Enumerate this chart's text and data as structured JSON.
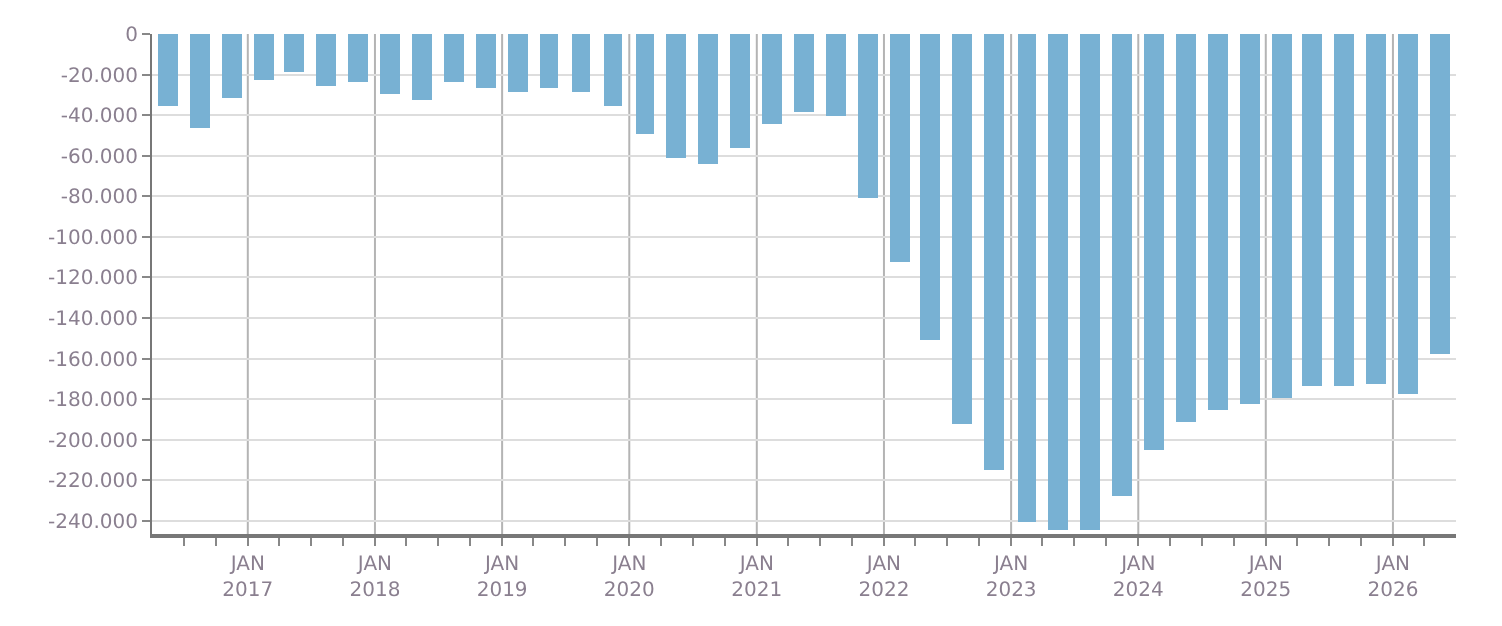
{
  "chart_data": {
    "type": "bar",
    "x": [
      "2016-05-15",
      "2016-08-15",
      "2016-11-15",
      "2017-02-15",
      "2017-05-15",
      "2017-08-15",
      "2017-11-15",
      "2018-02-15",
      "2018-05-15",
      "2018-08-15",
      "2018-11-15",
      "2019-02-15",
      "2019-05-15",
      "2019-08-15",
      "2019-11-15",
      "2020-02-15",
      "2020-05-15",
      "2020-08-15",
      "2020-11-15",
      "2021-02-15",
      "2021-05-15",
      "2021-08-15",
      "2021-11-15",
      "2022-02-15",
      "2022-05-15",
      "2022-08-15",
      "2022-11-15",
      "2023-02-15",
      "2023-05-15",
      "2023-08-15",
      "2023-11-15",
      "2024-02-15",
      "2024-05-15",
      "2024-08-15",
      "2024-11-15",
      "2025-02-15",
      "2025-05-15",
      "2025-08-15",
      "2025-11-15",
      "2026-02-15",
      "2026-05-15"
    ],
    "values": [
      -35000,
      -46000,
      -32000,
      -22800,
      -19100,
      -25500,
      -24000,
      -29200,
      -32900,
      -23700,
      -26500,
      -28300,
      -26500,
      -28300,
      -35700,
      -49500,
      -61500,
      -64300,
      -56000,
      -44000,
      -38500,
      -40300,
      -81000,
      -112300,
      -151100,
      -192700,
      -214800,
      -240600,
      -245000,
      -245000,
      -227700,
      -204600,
      -191700,
      -185200,
      -182500,
      -179700,
      -173300,
      -173300,
      -172300,
      -177900,
      -157600
    ],
    "color": "#78b1d3",
    "xlim": [
      "2016-04-01",
      "2026-07-01"
    ],
    "xticks": [
      {
        "value": "2016-07-01",
        "label": null
      },
      {
        "value": "2016-10-01",
        "label": null
      },
      {
        "value": "2017-01-01",
        "label": "JAN\n2017"
      },
      {
        "value": "2017-04-01",
        "label": null
      },
      {
        "value": "2017-07-01",
        "label": null
      },
      {
        "value": "2017-10-01",
        "label": null
      },
      {
        "value": "2018-01-01",
        "label": "JAN\n2018"
      },
      {
        "value": "2018-04-01",
        "label": null
      },
      {
        "value": "2018-07-01",
        "label": null
      },
      {
        "value": "2018-10-01",
        "label": null
      },
      {
        "value": "2019-01-01",
        "label": "JAN\n2019"
      },
      {
        "value": "2019-04-01",
        "label": null
      },
      {
        "value": "2019-07-01",
        "label": null
      },
      {
        "value": "2019-10-01",
        "label": null
      },
      {
        "value": "2020-01-01",
        "label": "JAN\n2020"
      },
      {
        "value": "2020-04-01",
        "label": null
      },
      {
        "value": "2020-07-01",
        "label": null
      },
      {
        "value": "2020-10-01",
        "label": null
      },
      {
        "value": "2021-01-01",
        "label": "JAN\n2021"
      },
      {
        "value": "2021-04-01",
        "label": null
      },
      {
        "value": "2021-07-01",
        "label": null
      },
      {
        "value": "2021-10-01",
        "label": null
      },
      {
        "value": "2022-01-01",
        "label": "JAN\n2022"
      },
      {
        "value": "2022-04-01",
        "label": null
      },
      {
        "value": "2022-07-01",
        "label": null
      },
      {
        "value": "2022-10-01",
        "label": null
      },
      {
        "value": "2023-01-01",
        "label": "JAN\n2023"
      },
      {
        "value": "2023-04-01",
        "label": null
      },
      {
        "value": "2023-07-01",
        "label": null
      },
      {
        "value": "2023-10-01",
        "label": null
      },
      {
        "value": "2024-01-01",
        "label": "JAN\n2024"
      },
      {
        "value": "2024-04-01",
        "label": null
      },
      {
        "value": "2024-07-01",
        "label": null
      },
      {
        "value": "2024-10-01",
        "label": null
      },
      {
        "value": "2025-01-01",
        "label": "JAN\n2025"
      },
      {
        "value": "2025-04-01",
        "label": null
      },
      {
        "value": "2025-07-01",
        "label": null
      },
      {
        "value": "2025-10-01",
        "label": null
      },
      {
        "value": "2026-01-01",
        "label": "JAN\n2026"
      },
      {
        "value": "2026-04-01",
        "label": null
      }
    ],
    "ylim": [
      -246500,
      0
    ],
    "yticks": [
      {
        "value": 0,
        "label": "0"
      },
      {
        "value": -20000,
        "label": "-20.000"
      },
      {
        "value": -40000,
        "label": "-40.000"
      },
      {
        "value": -60000,
        "label": "-60.000"
      },
      {
        "value": -80000,
        "label": "-80.000"
      },
      {
        "value": -100000,
        "label": "-100.000"
      },
      {
        "value": -120000,
        "label": "-120.000"
      },
      {
        "value": -140000,
        "label": "-140.000"
      },
      {
        "value": -160000,
        "label": "-160.000"
      },
      {
        "value": -180000,
        "label": "-180.000"
      },
      {
        "value": -200000,
        "label": "-200.000"
      },
      {
        "value": -220000,
        "label": "-220.000"
      },
      {
        "value": -240000,
        "label": "-240.000"
      }
    ],
    "grid": true,
    "legend": false
  }
}
